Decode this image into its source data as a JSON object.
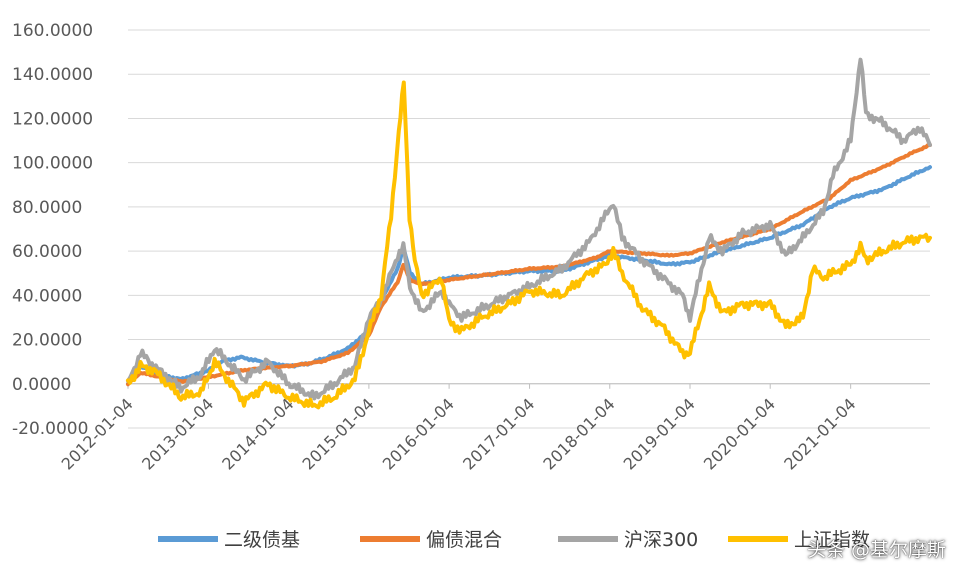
{
  "chart_data": {
    "type": "line",
    "title": "",
    "xlabel": "",
    "ylabel": "",
    "ylim": [
      -20,
      160
    ],
    "grid": "horizontal",
    "legend_position": "bottom",
    "y_ticks": [
      "-20.0000",
      "0.0000",
      "20.0000",
      "40.0000",
      "60.0000",
      "80.0000",
      "100.0000",
      "120.0000",
      "140.0000",
      "160.0000"
    ],
    "x_ticks": [
      "2012-01-04",
      "2013-01-04",
      "2014-01-04",
      "2015-01-04",
      "2016-01-04",
      "2017-01-04",
      "2018-01-04",
      "2019-01-04",
      "2020-01-04",
      "2021-01-04"
    ],
    "series": [
      {
        "name": "二级债基",
        "color": "#5B9BD5",
        "points": [
          [
            "2012-01-04",
            0
          ],
          [
            "2012-03-01",
            8
          ],
          [
            "2012-06-01",
            4
          ],
          [
            "2012-09-01",
            2
          ],
          [
            "2013-01-04",
            6
          ],
          [
            "2013-03-01",
            10
          ],
          [
            "2013-06-01",
            12
          ],
          [
            "2013-09-01",
            10
          ],
          [
            "2014-01-04",
            8
          ],
          [
            "2014-04-01",
            9
          ],
          [
            "2014-07-01",
            12
          ],
          [
            "2014-10-01",
            16
          ],
          [
            "2015-01-04",
            24
          ],
          [
            "2015-03-01",
            38
          ],
          [
            "2015-05-15",
            52
          ],
          [
            "2015-06-10",
            62
          ],
          [
            "2015-07-10",
            50
          ],
          [
            "2015-09-01",
            45
          ],
          [
            "2016-01-04",
            48
          ],
          [
            "2016-06-01",
            49
          ],
          [
            "2017-01-04",
            51
          ],
          [
            "2017-06-01",
            51
          ],
          [
            "2017-11-01",
            56
          ],
          [
            "2018-01-04",
            58
          ],
          [
            "2018-06-01",
            56
          ],
          [
            "2018-10-01",
            54
          ],
          [
            "2019-01-04",
            55
          ],
          [
            "2019-06-01",
            60
          ],
          [
            "2020-01-04",
            66
          ],
          [
            "2020-06-01",
            72
          ],
          [
            "2020-10-01",
            80
          ],
          [
            "2021-01-04",
            84
          ],
          [
            "2021-06-01",
            88
          ],
          [
            "2021-10-01",
            94
          ],
          [
            "2021-12-31",
            98
          ]
        ]
      },
      {
        "name": "偏债混合",
        "color": "#ED7D31",
        "points": [
          [
            "2012-01-04",
            0
          ],
          [
            "2012-03-01",
            5
          ],
          [
            "2012-06-01",
            3
          ],
          [
            "2012-09-01",
            1
          ],
          [
            "2013-01-04",
            3
          ],
          [
            "2013-06-01",
            6
          ],
          [
            "2013-09-01",
            7
          ],
          [
            "2014-01-04",
            8
          ],
          [
            "2014-06-01",
            10
          ],
          [
            "2014-10-01",
            14
          ],
          [
            "2015-01-04",
            22
          ],
          [
            "2015-03-01",
            35
          ],
          [
            "2015-05-15",
            46
          ],
          [
            "2015-06-10",
            54
          ],
          [
            "2015-07-10",
            47
          ],
          [
            "2015-09-01",
            45
          ],
          [
            "2016-01-04",
            47
          ],
          [
            "2016-06-01",
            49
          ],
          [
            "2017-01-04",
            52
          ],
          [
            "2017-06-01",
            53
          ],
          [
            "2017-11-01",
            57
          ],
          [
            "2018-01-04",
            60
          ],
          [
            "2018-06-01",
            59
          ],
          [
            "2018-10-01",
            58
          ],
          [
            "2019-01-04",
            59
          ],
          [
            "2019-06-01",
            64
          ],
          [
            "2020-01-04",
            70
          ],
          [
            "2020-06-01",
            78
          ],
          [
            "2020-10-01",
            84
          ],
          [
            "2021-01-04",
            92
          ],
          [
            "2021-06-01",
            98
          ],
          [
            "2021-10-01",
            104
          ],
          [
            "2021-12-31",
            108
          ]
        ]
      },
      {
        "name": "沪深300",
        "color": "#A5A5A5",
        "points": [
          [
            "2012-01-04",
            0
          ],
          [
            "2012-03-01",
            14
          ],
          [
            "2012-05-01",
            8
          ],
          [
            "2012-09-01",
            -2
          ],
          [
            "2012-12-01",
            4
          ],
          [
            "2013-02-01",
            16
          ],
          [
            "2013-06-15",
            2
          ],
          [
            "2013-10-01",
            10
          ],
          [
            "2014-01-04",
            0
          ],
          [
            "2014-05-01",
            -6
          ],
          [
            "2014-08-01",
            0
          ],
          [
            "2014-11-01",
            8
          ],
          [
            "2015-01-04",
            30
          ],
          [
            "2015-03-01",
            38
          ],
          [
            "2015-05-15",
            58
          ],
          [
            "2015-06-10",
            62
          ],
          [
            "2015-07-10",
            44
          ],
          [
            "2015-09-01",
            32
          ],
          [
            "2015-12-01",
            42
          ],
          [
            "2016-01-04",
            36
          ],
          [
            "2016-03-01",
            30
          ],
          [
            "2016-06-01",
            34
          ],
          [
            "2016-10-01",
            40
          ],
          [
            "2017-01-04",
            44
          ],
          [
            "2017-06-01",
            52
          ],
          [
            "2017-10-01",
            64
          ],
          [
            "2017-12-15",
            76
          ],
          [
            "2018-01-20",
            82
          ],
          [
            "2018-03-01",
            66
          ],
          [
            "2018-06-01",
            56
          ],
          [
            "2018-09-01",
            48
          ],
          [
            "2018-12-01",
            40
          ],
          [
            "2019-01-04",
            30
          ],
          [
            "2019-04-01",
            66
          ],
          [
            "2019-06-01",
            60
          ],
          [
            "2019-09-01",
            68
          ],
          [
            "2020-01-04",
            72
          ],
          [
            "2020-03-15",
            58
          ],
          [
            "2020-06-01",
            66
          ],
          [
            "2020-09-01",
            78
          ],
          [
            "2020-10-15",
            94
          ],
          [
            "2021-01-04",
            110
          ],
          [
            "2021-02-18",
            148
          ],
          [
            "2021-03-15",
            122
          ],
          [
            "2021-06-01",
            118
          ],
          [
            "2021-09-01",
            110
          ],
          [
            "2021-11-15",
            116
          ],
          [
            "2021-12-31",
            108
          ]
        ]
      },
      {
        "name": "上证指数",
        "color": "#FFC000",
        "points": [
          [
            "2012-01-04",
            0
          ],
          [
            "2012-03-01",
            8
          ],
          [
            "2012-05-01",
            6
          ],
          [
            "2012-09-01",
            -6
          ],
          [
            "2012-12-01",
            -4
          ],
          [
            "2013-02-01",
            10
          ],
          [
            "2013-06-15",
            -8
          ],
          [
            "2013-10-01",
            0
          ],
          [
            "2014-01-04",
            -6
          ],
          [
            "2014-05-01",
            -10
          ],
          [
            "2014-08-01",
            -6
          ],
          [
            "2014-11-01",
            2
          ],
          [
            "2015-01-04",
            24
          ],
          [
            "2015-03-01",
            40
          ],
          [
            "2015-04-15",
            76
          ],
          [
            "2015-05-20",
            114
          ],
          [
            "2015-06-12",
            136
          ],
          [
            "2015-07-08",
            76
          ],
          [
            "2015-08-01",
            56
          ],
          [
            "2015-09-01",
            40
          ],
          [
            "2015-12-01",
            48
          ],
          [
            "2016-01-04",
            28
          ],
          [
            "2016-03-01",
            24
          ],
          [
            "2016-06-01",
            30
          ],
          [
            "2016-10-01",
            36
          ],
          [
            "2017-01-04",
            42
          ],
          [
            "2017-06-01",
            40
          ],
          [
            "2017-10-01",
            50
          ],
          [
            "2017-12-15",
            54
          ],
          [
            "2018-01-20",
            60
          ],
          [
            "2018-03-01",
            50
          ],
          [
            "2018-06-01",
            34
          ],
          [
            "2018-09-01",
            26
          ],
          [
            "2018-12-01",
            14
          ],
          [
            "2019-01-04",
            14
          ],
          [
            "2019-04-01",
            44
          ],
          [
            "2019-06-01",
            32
          ],
          [
            "2019-09-01",
            36
          ],
          [
            "2020-01-04",
            36
          ],
          [
            "2020-03-15",
            26
          ],
          [
            "2020-06-01",
            30
          ],
          [
            "2020-07-15",
            52
          ],
          [
            "2020-09-01",
            48
          ],
          [
            "2021-01-04",
            54
          ],
          [
            "2021-02-18",
            62
          ],
          [
            "2021-03-15",
            56
          ],
          [
            "2021-06-01",
            60
          ],
          [
            "2021-09-01",
            64
          ],
          [
            "2021-11-15",
            66
          ],
          [
            "2021-12-31",
            66
          ]
        ]
      }
    ]
  },
  "watermark": "头条 @基尔摩斯"
}
